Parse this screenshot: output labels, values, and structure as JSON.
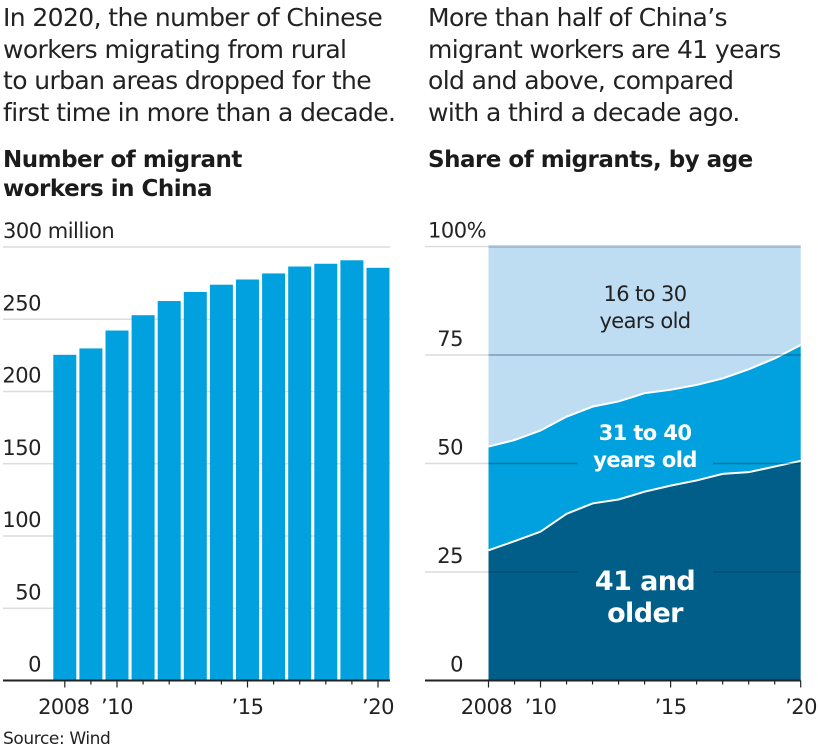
{
  "colors": {
    "bar": "#00A1DE",
    "age_16_30": "#BEDCF2",
    "age_31_40": "#00A1DE",
    "age_41_plus": "#005E89",
    "gridline": "#DCDCDC",
    "axis": "#222222",
    "text": "#222222"
  },
  "left_panel": {
    "dek": [
      "In 2020, the number of Chinese",
      "workers migrating from rural",
      "to urban areas dropped for the",
      "first time in more than a decade."
    ],
    "title_lines": [
      "Number of migrant",
      "workers in China"
    ]
  },
  "right_panel": {
    "dek": [
      "More than half of China’s",
      "migrant workers are 41 years",
      "old and above, compared",
      "with a third a decade ago."
    ],
    "title_lines": [
      "Share of migrants, by age"
    ]
  },
  "source": "Source: Wind",
  "chart_data": [
    {
      "type": "bar",
      "title": "Number of migrant workers in China",
      "xlabel": "",
      "ylabel": "million",
      "categories": [
        2008,
        2009,
        2010,
        2011,
        2012,
        2013,
        2014,
        2015,
        2016,
        2017,
        2018,
        2019,
        2020
      ],
      "values": [
        225.4,
        229.8,
        242.2,
        252.8,
        262.6,
        268.9,
        273.9,
        277.5,
        281.7,
        286.5,
        288.4,
        290.8,
        285.6
      ],
      "ylim": [
        0,
        300
      ],
      "yticks": [
        0,
        50,
        100,
        150,
        200,
        250,
        300
      ],
      "ytick_labels": [
        "0",
        "50",
        "100",
        "150",
        "200",
        "250",
        "300 million"
      ],
      "xticks_labeled": [
        2008,
        2010,
        2015,
        2020
      ],
      "xtick_labels": [
        "2008",
        "’10",
        "’15",
        "’20"
      ],
      "grid": true
    },
    {
      "type": "area",
      "stacked": true,
      "title": "Share of migrants, by age",
      "xlabel": "",
      "ylabel": "%",
      "x": [
        2008,
        2009,
        2010,
        2011,
        2012,
        2013,
        2014,
        2015,
        2016,
        2017,
        2018,
        2019,
        2020
      ],
      "series": [
        {
          "name": "41 and older",
          "label_lines": [
            "41 and",
            "older"
          ],
          "values": [
            30.0,
            32.1,
            34.3,
            38.4,
            40.8,
            41.7,
            43.5,
            44.9,
            46.1,
            47.6,
            48.0,
            49.3,
            50.6
          ]
        },
        {
          "name": "31 to 40 years old",
          "label_lines": [
            "31 to 40",
            "years old"
          ],
          "values": [
            23.9,
            23.3,
            23.3,
            22.4,
            22.3,
            22.6,
            22.7,
            22.1,
            22.0,
            22.0,
            23.7,
            24.9,
            26.7
          ]
        },
        {
          "name": "16 to 30 years old",
          "label_lines": [
            "16 to 30",
            "years old"
          ],
          "values": [
            46.1,
            44.6,
            42.4,
            39.2,
            36.9,
            35.7,
            33.8,
            33.0,
            31.9,
            30.4,
            28.3,
            25.8,
            22.7
          ]
        }
      ],
      "ylim": [
        0,
        100
      ],
      "yticks": [
        0,
        25,
        50,
        75,
        100
      ],
      "ytick_labels": [
        "0",
        "25",
        "50",
        "75",
        "100%"
      ],
      "xticks_labeled": [
        2008,
        2010,
        2015,
        2020
      ],
      "xtick_labels": [
        "2008",
        "’10",
        "’15",
        "’20"
      ],
      "grid": true
    }
  ]
}
